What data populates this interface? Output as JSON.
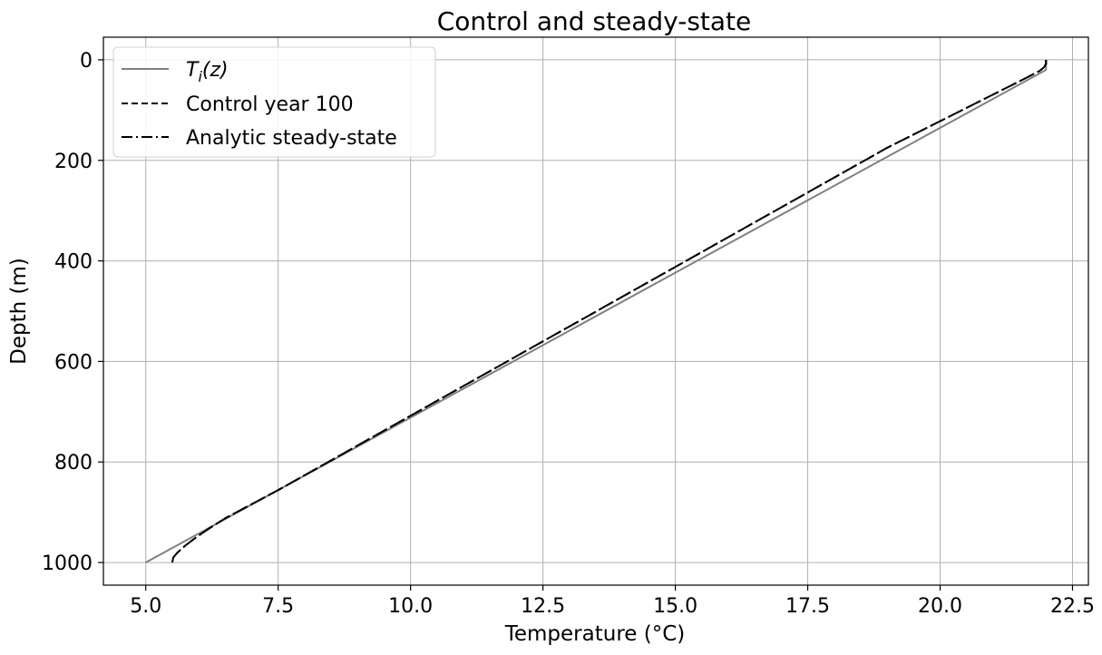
{
  "chart_data": {
    "type": "line",
    "title": "Control and steady-state",
    "xlabel": "Temperature (°C)",
    "ylabel": "Depth (m)",
    "xlim": [
      4.2,
      22.8
    ],
    "ylim": [
      1045,
      -45
    ],
    "y_inverted": true,
    "grid": true,
    "legend_position": "upper-left",
    "xticks": [
      {
        "value": 5.0,
        "label": "5.0"
      },
      {
        "value": 7.5,
        "label": "7.5"
      },
      {
        "value": 10.0,
        "label": "10.0"
      },
      {
        "value": 12.5,
        "label": "12.5"
      },
      {
        "value": 15.0,
        "label": "15.0"
      },
      {
        "value": 17.5,
        "label": "17.5"
      },
      {
        "value": 20.0,
        "label": "20.0"
      },
      {
        "value": 22.5,
        "label": "22.5"
      }
    ],
    "yticks": [
      {
        "value": 0,
        "label": "0"
      },
      {
        "value": 200,
        "label": "200"
      },
      {
        "value": 400,
        "label": "400"
      },
      {
        "value": 600,
        "label": "600"
      },
      {
        "value": 800,
        "label": "800"
      },
      {
        "value": 1000,
        "label": "1000"
      }
    ],
    "series": [
      {
        "name": "T_i(z)",
        "legend_main": "T",
        "legend_sub": "i",
        "legend_rest": "(z)",
        "color": "#808080",
        "style": "solid",
        "points": [
          [
            22.0,
            0
          ],
          [
            22.0,
            20
          ],
          [
            5.0,
            1000
          ]
        ]
      },
      {
        "name": "Control year 100",
        "color": "#000000",
        "style": "dashed",
        "points": [
          [
            22.0,
            0
          ],
          [
            22.0,
            8
          ],
          [
            21.96,
            15
          ],
          [
            21.88,
            22
          ],
          [
            21.7,
            32
          ],
          [
            19.0,
            175
          ],
          [
            15.0,
            412
          ],
          [
            12.5,
            560
          ],
          [
            10.0,
            708
          ],
          [
            7.5,
            856
          ],
          [
            6.5,
            912
          ],
          [
            6.2,
            932
          ],
          [
            5.95,
            950
          ],
          [
            5.75,
            966
          ],
          [
            5.6,
            980
          ],
          [
            5.52,
            990
          ],
          [
            5.5,
            1000
          ]
        ]
      },
      {
        "name": "Analytic steady-state",
        "color": "#000000",
        "style": "dashdot",
        "points": [
          [
            22.0,
            0
          ],
          [
            22.0,
            8
          ],
          [
            21.96,
            15
          ],
          [
            21.88,
            22
          ],
          [
            21.7,
            32
          ],
          [
            19.0,
            175
          ],
          [
            15.0,
            412
          ],
          [
            12.5,
            560
          ],
          [
            10.0,
            708
          ],
          [
            7.5,
            856
          ],
          [
            6.5,
            912
          ],
          [
            6.2,
            932
          ],
          [
            5.95,
            950
          ],
          [
            5.75,
            966
          ],
          [
            5.6,
            980
          ],
          [
            5.52,
            990
          ],
          [
            5.5,
            1000
          ]
        ]
      }
    ]
  }
}
